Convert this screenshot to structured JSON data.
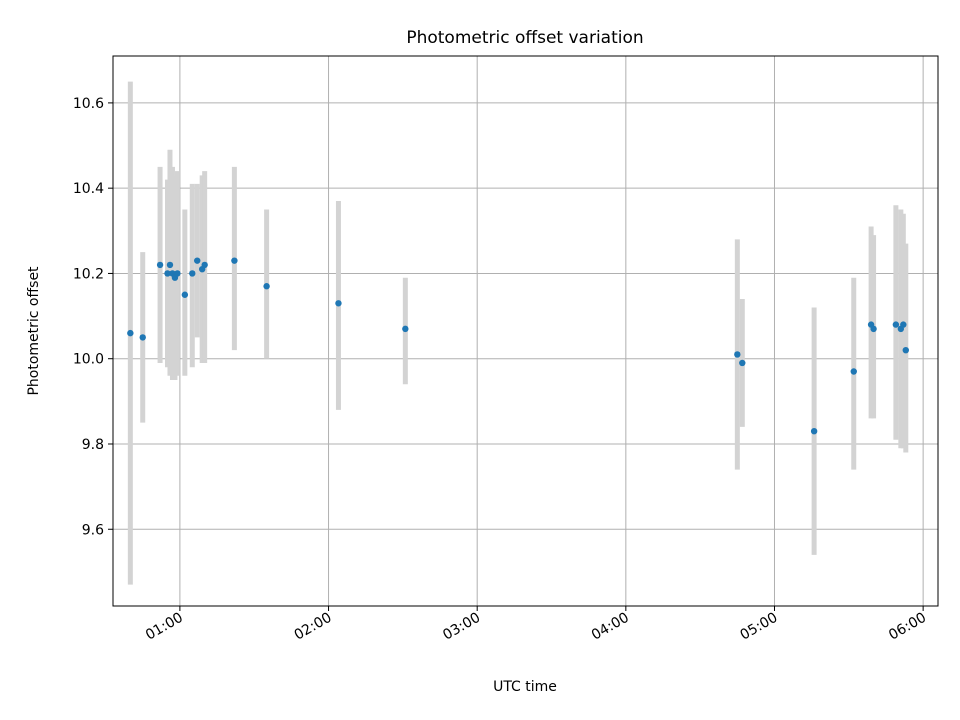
{
  "chart_data": {
    "type": "scatter",
    "title": "Photometric offset variation",
    "xlabel": "UTC time",
    "ylabel": "Photometric offset",
    "x_axis": {
      "format": "HH:MM",
      "range": [
        "00:33",
        "06:06"
      ],
      "ticks": [
        "01:00",
        "02:00",
        "03:00",
        "04:00",
        "05:00",
        "06:00"
      ]
    },
    "y_axis": {
      "range": [
        9.42,
        10.71
      ],
      "ticks": [
        9.6,
        9.8,
        10.0,
        10.2,
        10.4,
        10.6
      ]
    },
    "grid": true,
    "colors": {
      "point": "#1f77b4",
      "errorbar": "#d3d3d3",
      "grid": "#b0b0b0"
    },
    "points": [
      {
        "t": "00:40",
        "y": 10.06,
        "ylo": 9.47,
        "yhi": 10.65
      },
      {
        "t": "00:45",
        "y": 10.05,
        "ylo": 9.85,
        "yhi": 10.25
      },
      {
        "t": "00:52",
        "y": 10.22,
        "ylo": 9.99,
        "yhi": 10.45
      },
      {
        "t": "00:55",
        "y": 10.2,
        "ylo": 9.98,
        "yhi": 10.42
      },
      {
        "t": "00:56",
        "y": 10.22,
        "ylo": 9.96,
        "yhi": 10.49
      },
      {
        "t": "00:57",
        "y": 10.2,
        "ylo": 9.95,
        "yhi": 10.45
      },
      {
        "t": "00:58",
        "y": 10.19,
        "ylo": 9.95,
        "yhi": 10.43
      },
      {
        "t": "00:59",
        "y": 10.2,
        "ylo": 9.96,
        "yhi": 10.44
      },
      {
        "t": "01:02",
        "y": 10.15,
        "ylo": 9.96,
        "yhi": 10.35
      },
      {
        "t": "01:05",
        "y": 10.2,
        "ylo": 9.98,
        "yhi": 10.41
      },
      {
        "t": "01:07",
        "y": 10.23,
        "ylo": 10.05,
        "yhi": 10.41
      },
      {
        "t": "01:09",
        "y": 10.21,
        "ylo": 9.99,
        "yhi": 10.43
      },
      {
        "t": "01:10",
        "y": 10.22,
        "ylo": 9.99,
        "yhi": 10.44
      },
      {
        "t": "01:22",
        "y": 10.23,
        "ylo": 10.02,
        "yhi": 10.45
      },
      {
        "t": "01:35",
        "y": 10.17,
        "ylo": 10.0,
        "yhi": 10.35
      },
      {
        "t": "02:04",
        "y": 10.13,
        "ylo": 9.88,
        "yhi": 10.37
      },
      {
        "t": "02:31",
        "y": 10.07,
        "ylo": 9.94,
        "yhi": 10.19
      },
      {
        "t": "04:45",
        "y": 10.01,
        "ylo": 9.74,
        "yhi": 10.28
      },
      {
        "t": "04:47",
        "y": 9.99,
        "ylo": 9.84,
        "yhi": 10.14
      },
      {
        "t": "05:16",
        "y": 9.83,
        "ylo": 9.54,
        "yhi": 10.12
      },
      {
        "t": "05:32",
        "y": 9.97,
        "ylo": 9.74,
        "yhi": 10.19
      },
      {
        "t": "05:39",
        "y": 10.08,
        "ylo": 9.86,
        "yhi": 10.31
      },
      {
        "t": "05:40",
        "y": 10.07,
        "ylo": 9.86,
        "yhi": 10.29
      },
      {
        "t": "05:49",
        "y": 10.08,
        "ylo": 9.81,
        "yhi": 10.36
      },
      {
        "t": "05:51",
        "y": 10.07,
        "ylo": 9.79,
        "yhi": 10.35
      },
      {
        "t": "05:52",
        "y": 10.08,
        "ylo": 9.79,
        "yhi": 10.34
      },
      {
        "t": "05:53",
        "y": 10.02,
        "ylo": 9.78,
        "yhi": 10.27
      }
    ]
  }
}
